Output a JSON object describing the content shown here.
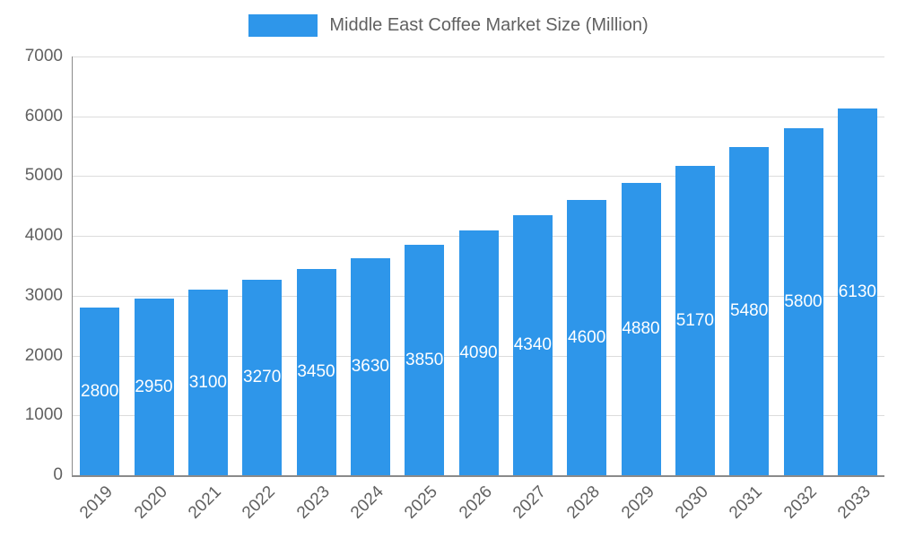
{
  "legend": {
    "label": "Middle East Coffee Market Size (Million)"
  },
  "colors": {
    "bar": "#2E96EA",
    "grid": "#dcdcdc",
    "axis_line": "#8a8a8a",
    "axis_text": "#616161",
    "bar_label_text": "#ffffff",
    "background": "#ffffff"
  },
  "chart_data": {
    "type": "bar",
    "title": "Middle East Coffee Market Size (Million)",
    "categories": [
      "2019",
      "2020",
      "2021",
      "2022",
      "2023",
      "2024",
      "2025",
      "2026",
      "2027",
      "2028",
      "2029",
      "2030",
      "2031",
      "2032",
      "2033"
    ],
    "values": [
      2800,
      2950,
      3100,
      3270,
      3450,
      3630,
      3850,
      4090,
      4340,
      4600,
      4880,
      5170,
      5480,
      5800,
      6130
    ],
    "y_ticks": [
      0,
      1000,
      2000,
      3000,
      4000,
      5000,
      6000,
      7000
    ],
    "ylim": [
      0,
      7000
    ],
    "xlabel": "",
    "ylabel": "",
    "grid": true,
    "legend_position": "top",
    "data_labels": "inside-center"
  }
}
